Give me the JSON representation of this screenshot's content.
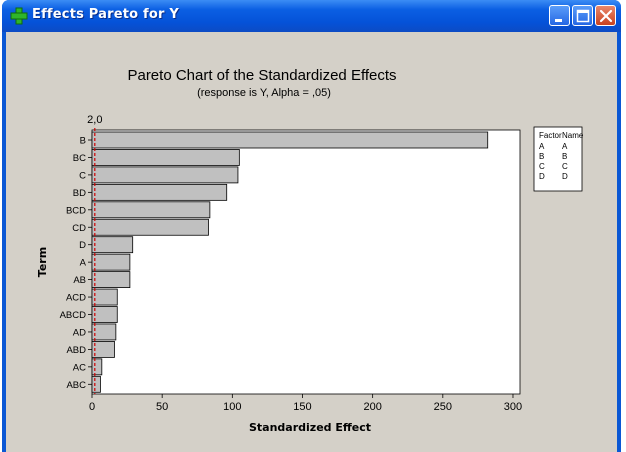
{
  "window": {
    "title": "Effects Pareto for Y",
    "icons": [
      "plus-icon",
      "minimize-icon",
      "maximize-icon",
      "close-icon"
    ]
  },
  "chart_data": {
    "type": "bar",
    "orientation": "horizontal",
    "title": "Pareto Chart of the Standardized Effects",
    "subtitle": "(response is Y, Alpha = ,05)",
    "xlabel": "Standardized Effect",
    "ylabel": "Term",
    "categories": [
      "B",
      "BC",
      "C",
      "BD",
      "BCD",
      "CD",
      "D",
      "A",
      "AB",
      "ACD",
      "ABCD",
      "AD",
      "ABD",
      "AC",
      "ABC"
    ],
    "values": [
      282,
      105,
      104,
      96,
      84,
      83,
      29,
      27,
      27,
      18,
      18,
      17,
      16,
      7,
      6
    ],
    "xlim": [
      0,
      305
    ],
    "xticks": [
      0,
      50,
      100,
      150,
      200,
      250,
      300
    ],
    "reference_line": {
      "value": 2.0,
      "label": "2,0"
    },
    "bar_color": "#c0c0c0",
    "reference_color": "#cc0000",
    "grid": false,
    "legend": {
      "placement": "right",
      "headers": [
        "Factor",
        "Name"
      ],
      "rows": [
        [
          "A",
          "A"
        ],
        [
          "B",
          "B"
        ],
        [
          "C",
          "C"
        ],
        [
          "D",
          "D"
        ]
      ]
    }
  }
}
